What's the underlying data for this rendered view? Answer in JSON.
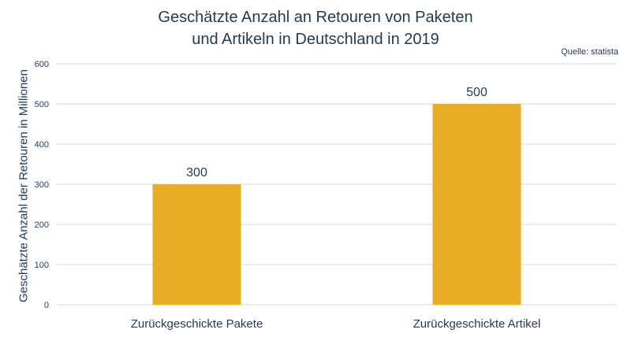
{
  "chart_data": {
    "type": "bar",
    "title_lines": [
      "Geschätzte Anzahl an Retouren von Paketen",
      "und Artikeln in Deutschland in 2019"
    ],
    "source": "Quelle: statista",
    "xlabel": "",
    "ylabel": "Geschätzte Anzahl der Retouren in Millionen",
    "categories": [
      "Zurückgeschickte Pakete",
      "Zurückgeschickte Artikel"
    ],
    "values": [
      300,
      500
    ],
    "data_labels": [
      "300",
      "500"
    ],
    "ylim": [
      0,
      600
    ],
    "yticks": [
      0,
      100,
      200,
      300,
      400,
      500,
      600
    ],
    "grid": true,
    "legend": "none",
    "bar_color": "#e9ad25",
    "grid_color": "#d9d9d9",
    "text_color": "#1f3a5f"
  }
}
